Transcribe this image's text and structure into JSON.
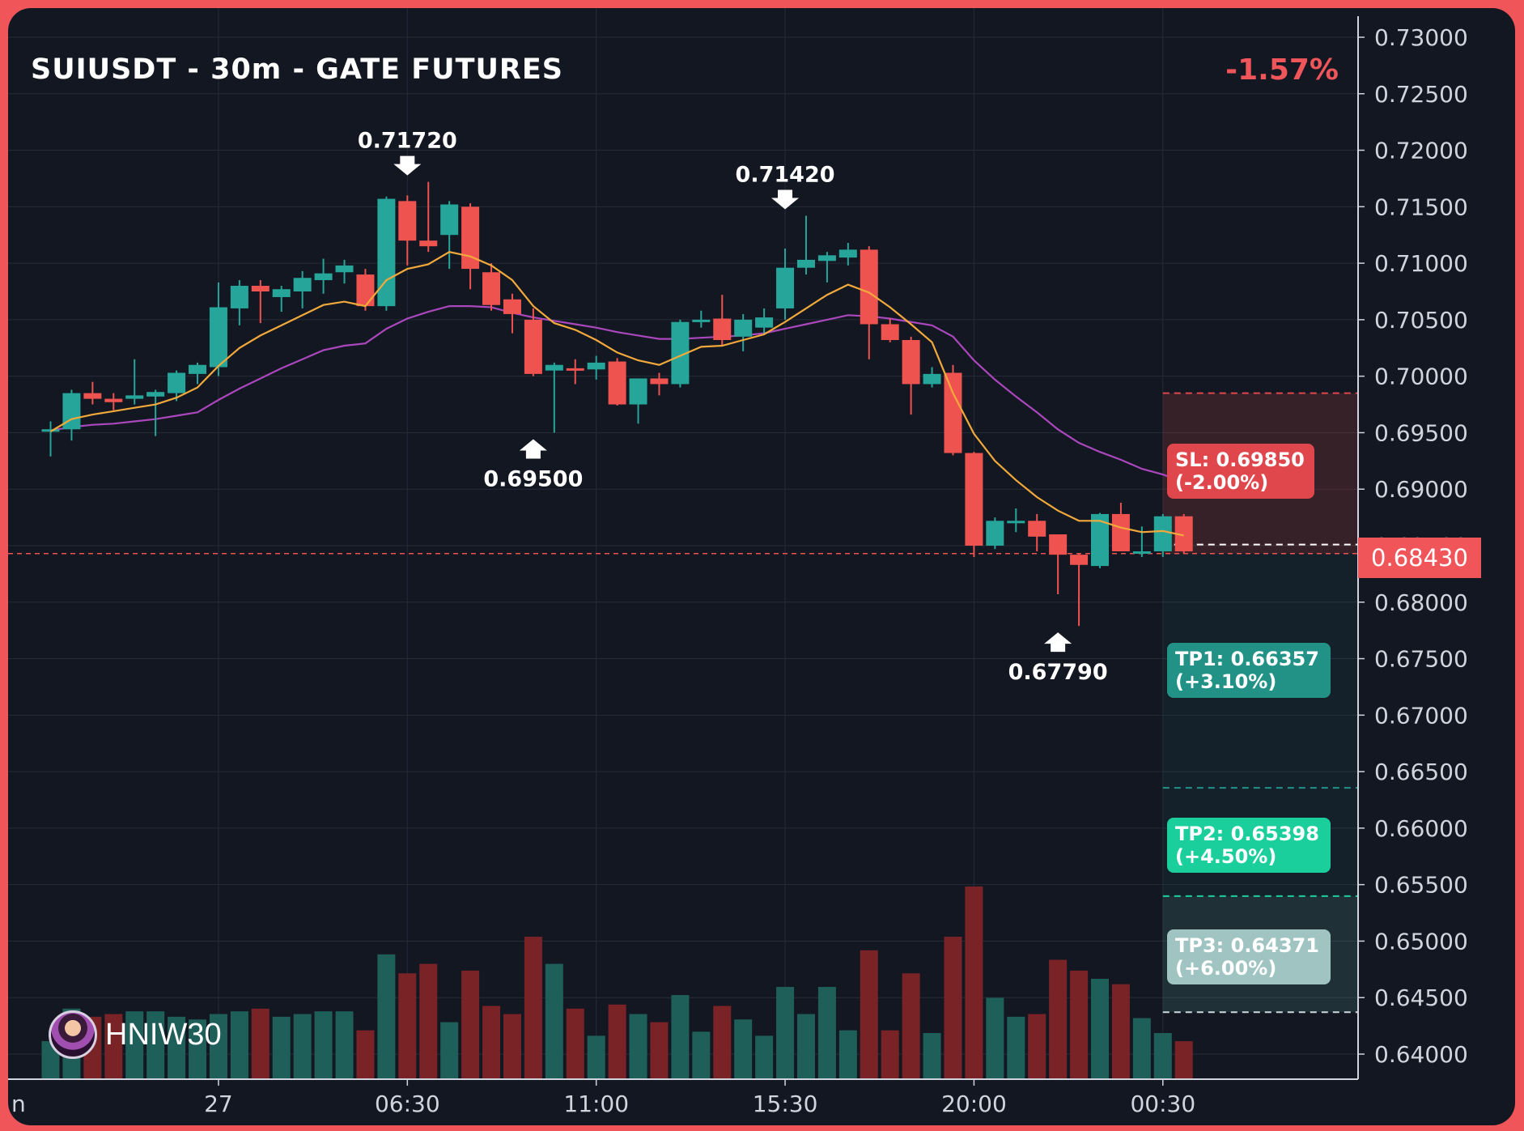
{
  "header": {
    "title": "SUIUSDT - 30m - GATE FUTURES",
    "change": "-1.57%"
  },
  "watermark": {
    "name": "HNIW30",
    "avatar_icon": "avatar-icon"
  },
  "colors": {
    "bull": "#26a69a",
    "bear": "#ef5350",
    "ema_fast": "#f2a93b",
    "ema_slow": "#ab47bc",
    "sl": "#e0474c",
    "tp1": "#229287",
    "tp2": "#1bcf9c",
    "tp3": "#9fc4c1"
  },
  "trade": {
    "current_price": "0.68430",
    "sl": {
      "value": 0.6985,
      "label": "SL: 0.69850",
      "pct": "(-2.00%)"
    },
    "tp1": {
      "value": 0.66357,
      "label": "TP1: 0.66357",
      "pct": "(+3.10%)"
    },
    "tp2": {
      "value": 0.65398,
      "label": "TP2: 0.65398",
      "pct": "(+4.50%)"
    },
    "tp3": {
      "value": 0.64371,
      "label": "TP3: 0.64371",
      "pct": "(+6.00%)"
    }
  },
  "chart_data": {
    "type": "candlestick",
    "title": "SUIUSDT - 30m - GATE FUTURES",
    "ylim": [
      0.638,
      0.7315
    ],
    "y_ticks": [
      "0.73000",
      "0.72500",
      "0.72000",
      "0.71500",
      "0.71000",
      "0.70500",
      "0.70000",
      "0.69500",
      "0.69000",
      "0.68500",
      "0.68000",
      "0.67500",
      "0.67000",
      "0.66500",
      "0.66000",
      "0.65500",
      "0.65000",
      "0.64500",
      "0.64000"
    ],
    "x_ticks": [
      {
        "label": "n",
        "index": -1
      },
      {
        "label": "27",
        "index": 8
      },
      {
        "label": "06:30",
        "index": 17
      },
      {
        "label": "11:00",
        "index": 26
      },
      {
        "label": "15:30",
        "index": 35
      },
      {
        "label": "20:00",
        "index": 44
      },
      {
        "label": "00:30",
        "index": 53
      }
    ],
    "candles": [
      [
        0.6952,
        0.696,
        0.6929,
        0.6953
      ],
      [
        0.6953,
        0.6988,
        0.6943,
        0.6985
      ],
      [
        0.6985,
        0.6995,
        0.6975,
        0.698
      ],
      [
        0.698,
        0.6985,
        0.697,
        0.6977
      ],
      [
        0.698,
        0.7015,
        0.6975,
        0.6983
      ],
      [
        0.6982,
        0.6988,
        0.6947,
        0.6986
      ],
      [
        0.6985,
        0.7005,
        0.6978,
        0.7003
      ],
      [
        0.7002,
        0.7012,
        0.6993,
        0.701
      ],
      [
        0.7008,
        0.7083,
        0.7,
        0.7061
      ],
      [
        0.706,
        0.7085,
        0.7045,
        0.708
      ],
      [
        0.708,
        0.7085,
        0.7047,
        0.7075
      ],
      [
        0.707,
        0.708,
        0.7057,
        0.7077
      ],
      [
        0.7075,
        0.7093,
        0.706,
        0.7087
      ],
      [
        0.7085,
        0.7104,
        0.7073,
        0.7091
      ],
      [
        0.7092,
        0.7103,
        0.7082,
        0.7098
      ],
      [
        0.709,
        0.7095,
        0.7058,
        0.7062
      ],
      [
        0.7062,
        0.7159,
        0.7058,
        0.7157
      ],
      [
        0.7155,
        0.716,
        0.7098,
        0.712
      ],
      [
        0.712,
        0.7172,
        0.711,
        0.7115
      ],
      [
        0.7125,
        0.7155,
        0.7095,
        0.7152
      ],
      [
        0.715,
        0.7153,
        0.7077,
        0.7095
      ],
      [
        0.7092,
        0.71,
        0.7058,
        0.7063
      ],
      [
        0.7068,
        0.7073,
        0.7038,
        0.7055
      ],
      [
        0.705,
        0.706,
        0.7,
        0.7002
      ],
      [
        0.7005,
        0.7012,
        0.695,
        0.701
      ],
      [
        0.7007,
        0.7015,
        0.6993,
        0.7006
      ],
      [
        0.7006,
        0.7018,
        0.6997,
        0.7012
      ],
      [
        0.7013,
        0.7016,
        0.6974,
        0.6975
      ],
      [
        0.6975,
        0.6998,
        0.6958,
        0.6998
      ],
      [
        0.6998,
        0.7003,
        0.6983,
        0.6993
      ],
      [
        0.6993,
        0.705,
        0.699,
        0.7048
      ],
      [
        0.7048,
        0.7058,
        0.7043,
        0.705
      ],
      [
        0.7051,
        0.7072,
        0.7027,
        0.7032
      ],
      [
        0.7035,
        0.7055,
        0.7022,
        0.705
      ],
      [
        0.7043,
        0.706,
        0.7037,
        0.7052
      ],
      [
        0.706,
        0.7113,
        0.705,
        0.7096
      ],
      [
        0.7096,
        0.7142,
        0.709,
        0.7103
      ],
      [
        0.7102,
        0.711,
        0.7083,
        0.7107
      ],
      [
        0.7105,
        0.7118,
        0.7098,
        0.7112
      ],
      [
        0.7112,
        0.7115,
        0.7015,
        0.7046
      ],
      [
        0.7046,
        0.7051,
        0.703,
        0.7032
      ],
      [
        0.7032,
        0.7035,
        0.6966,
        0.6993
      ],
      [
        0.6993,
        0.7008,
        0.699,
        0.7002
      ],
      [
        0.7003,
        0.701,
        0.693,
        0.6932
      ],
      [
        0.6932,
        0.6933,
        0.684,
        0.685
      ],
      [
        0.685,
        0.6875,
        0.6847,
        0.6872
      ],
      [
        0.687,
        0.6883,
        0.6862,
        0.6872
      ],
      [
        0.6872,
        0.6878,
        0.6845,
        0.6858
      ],
      [
        0.686,
        0.686,
        0.6807,
        0.6842
      ],
      [
        0.6842,
        0.6843,
        0.6779,
        0.6833
      ],
      [
        0.6832,
        0.6879,
        0.683,
        0.6878
      ],
      [
        0.6878,
        0.6888,
        0.6845,
        0.6845
      ],
      [
        0.6845,
        0.6867,
        0.684,
        0.6845
      ],
      [
        0.6845,
        0.6878,
        0.684,
        0.6876
      ],
      [
        0.6876,
        0.6878,
        0.6843,
        0.6845
      ]
    ],
    "volume": [
      28,
      52,
      46,
      48,
      50,
      50,
      46,
      44,
      48,
      50,
      52,
      46,
      48,
      50,
      50,
      36,
      92,
      78,
      85,
      42,
      80,
      54,
      48,
      105,
      85,
      52,
      32,
      55,
      48,
      42,
      62,
      35,
      54,
      44,
      32,
      68,
      48,
      68,
      36,
      95,
      36,
      78,
      34,
      105,
      142,
      60,
      46,
      48,
      88,
      80,
      74,
      70,
      45,
      34,
      28
    ],
    "ema_fast": [
      0.6951,
      0.6962,
      0.6966,
      0.6969,
      0.6972,
      0.6975,
      0.6981,
      0.699,
      0.7009,
      0.7025,
      0.7036,
      0.7045,
      0.7054,
      0.7063,
      0.7066,
      0.7062,
      0.7085,
      0.7095,
      0.7099,
      0.711,
      0.7106,
      0.7098,
      0.7085,
      0.7062,
      0.7047,
      0.7041,
      0.7032,
      0.7021,
      0.7014,
      0.701,
      0.7018,
      0.7026,
      0.7027,
      0.7032,
      0.7037,
      0.7048,
      0.706,
      0.7072,
      0.7081,
      0.7074,
      0.7061,
      0.7046,
      0.703,
      0.6985,
      0.6949,
      0.6925,
      0.6908,
      0.6893,
      0.6881,
      0.6872,
      0.6872,
      0.6866,
      0.6862,
      0.6863,
      0.6859
    ],
    "ema_slow": [
      0.6952,
      0.6955,
      0.6957,
      0.6958,
      0.696,
      0.6962,
      0.6965,
      0.6968,
      0.6979,
      0.6989,
      0.6998,
      0.7007,
      0.7015,
      0.7023,
      0.7027,
      0.7029,
      0.7042,
      0.7051,
      0.7057,
      0.7062,
      0.7062,
      0.7061,
      0.7056,
      0.7052,
      0.7049,
      0.7046,
      0.7043,
      0.7039,
      0.7036,
      0.7033,
      0.7033,
      0.7034,
      0.7035,
      0.7036,
      0.7038,
      0.7042,
      0.7046,
      0.705,
      0.7054,
      0.7053,
      0.7051,
      0.7048,
      0.7045,
      0.7035,
      0.7014,
      0.6997,
      0.6982,
      0.6968,
      0.6953,
      0.6941,
      0.6933,
      0.6926,
      0.6918,
      0.6913,
      0.6906
    ],
    "annotations": [
      {
        "label": "0.71720",
        "index": 17,
        "price": 0.7172,
        "dir": "down"
      },
      {
        "label": "0.69500",
        "index": 23,
        "price": 0.695,
        "dir": "up"
      },
      {
        "label": "0.71420",
        "index": 35,
        "price": 0.7142,
        "dir": "down"
      },
      {
        "label": "0.67790",
        "index": 48,
        "price": 0.6779,
        "dir": "up"
      }
    ]
  }
}
